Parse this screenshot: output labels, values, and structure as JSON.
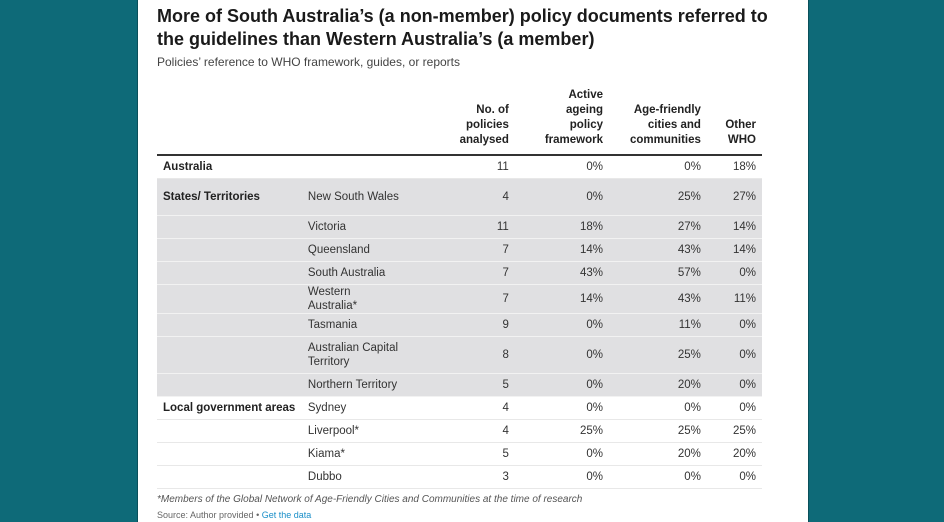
{
  "title": "More of South Australia’s (a non-member) policy documents referred to the guidelines than Western Australia’s (a member)",
  "subtitle": "Policies’ reference to WHO framework, guides, or reports",
  "columns": [
    "No. of policies analysed",
    "Active ageing policy framework",
    "Age-friendly cities and communities",
    "Other WHO"
  ],
  "rows": [
    {
      "group": "Australia",
      "name": "",
      "policies": "11",
      "active": "0%",
      "agefriendly": "0%",
      "other": "18%"
    },
    {
      "group": "States/ Territories",
      "name": "New South Wales",
      "policies": "4",
      "active": "0%",
      "agefriendly": "25%",
      "other": "27%"
    },
    {
      "group": "",
      "name": "Victoria",
      "policies": "11",
      "active": "18%",
      "agefriendly": "27%",
      "other": "14%"
    },
    {
      "group": "",
      "name": "Queensland",
      "policies": "7",
      "active": "14%",
      "agefriendly": "43%",
      "other": "14%"
    },
    {
      "group": "",
      "name": "South Australia",
      "policies": "7",
      "active": "43%",
      "agefriendly": "57%",
      "other": "0%"
    },
    {
      "group": "",
      "name": "Western Australia*",
      "policies": "7",
      "active": "14%",
      "agefriendly": "43%",
      "other": "11%"
    },
    {
      "group": "",
      "name": "Tasmania",
      "policies": "9",
      "active": "0%",
      "agefriendly": "11%",
      "other": "0%"
    },
    {
      "group": "",
      "name": "Australian Capital Territory",
      "policies": "8",
      "active": "0%",
      "agefriendly": "25%",
      "other": "0%"
    },
    {
      "group": "",
      "name": "Northern Territory",
      "policies": "5",
      "active": "0%",
      "agefriendly": "20%",
      "other": "0%"
    },
    {
      "group": "Local government areas",
      "name": "Sydney",
      "policies": "4",
      "active": "0%",
      "agefriendly": "0%",
      "other": "0%"
    },
    {
      "group": "",
      "name": "Liverpool*",
      "policies": "4",
      "active": "25%",
      "agefriendly": "25%",
      "other": "25%"
    },
    {
      "group": "",
      "name": "Kiama*",
      "policies": "5",
      "active": "0%",
      "agefriendly": "20%",
      "other": "20%"
    },
    {
      "group": "",
      "name": "Dubbo",
      "policies": "3",
      "active": "0%",
      "agefriendly": "0%",
      "other": "0%"
    }
  ],
  "footnote": "*Members of the Global Network of Age-Friendly Cities and Communities at the time of research",
  "source": "Source: Author provided",
  "source_sep": " • ",
  "get_data_label": "Get the data",
  "colors": {
    "background": "#0e6a78",
    "shaded_rows": "#e0e0e2",
    "link": "#1a8fc9"
  }
}
